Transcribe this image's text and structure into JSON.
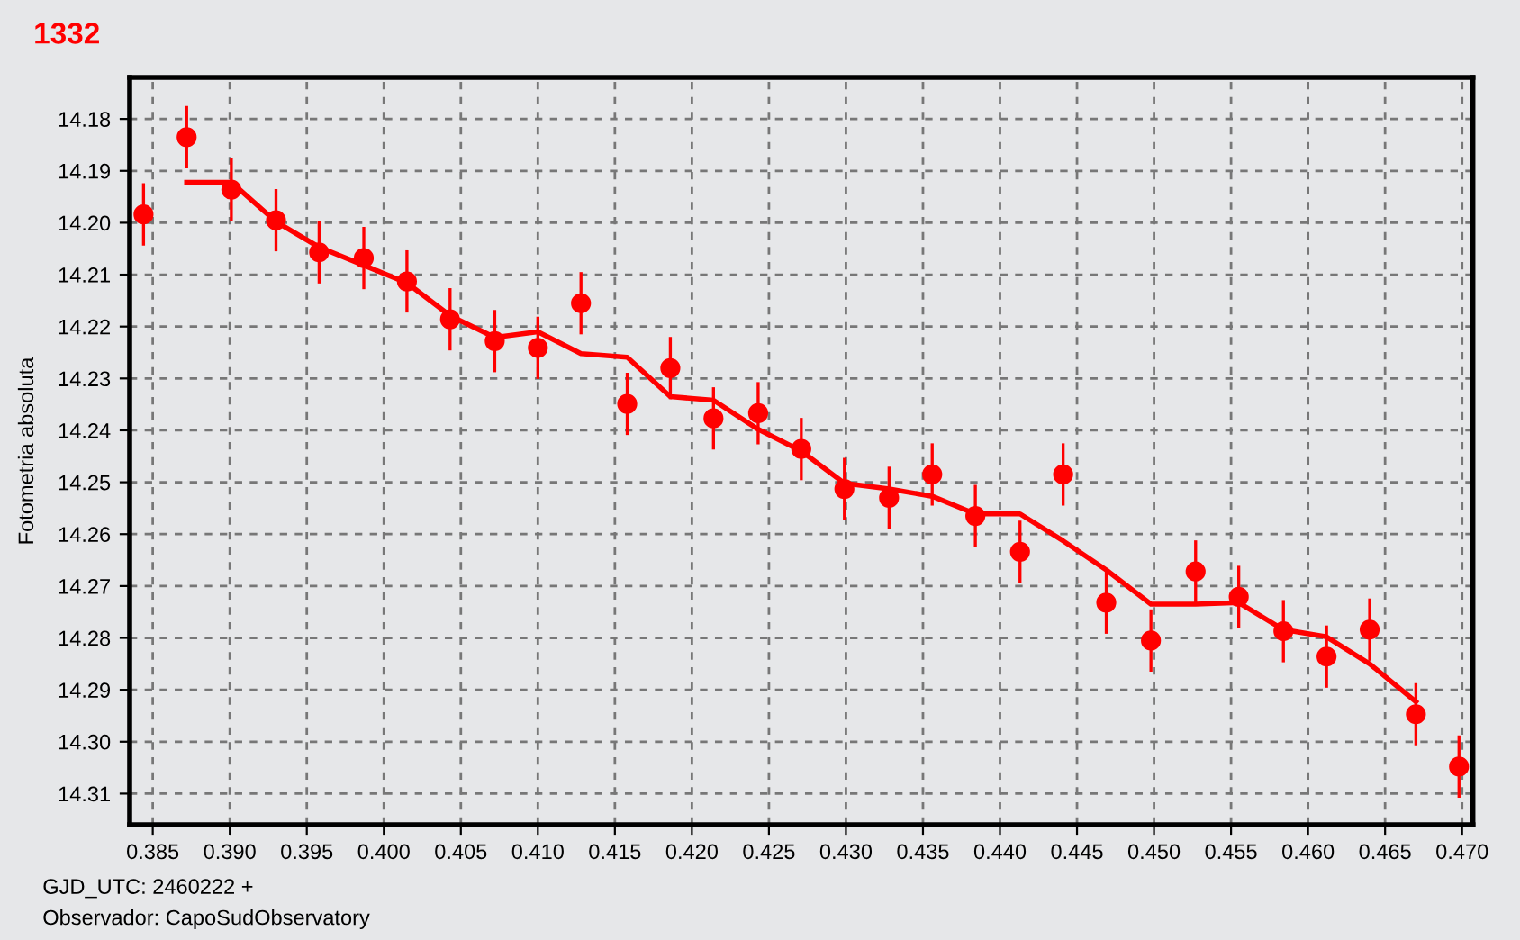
{
  "chart_data": {
    "type": "scatter",
    "title": "1332",
    "ylabel": "Fotometria absoluta",
    "annotations": [
      "GJD_UTC: 2460222 +",
      "Observador: CapoSudObservatory"
    ],
    "xlim": [
      0.3835,
      0.4707
    ],
    "ylim": [
      14.316,
      14.172
    ],
    "xticks": [
      {
        "value": 0.385,
        "label": "0.385"
      },
      {
        "value": 0.39,
        "label": "0.390"
      },
      {
        "value": 0.395,
        "label": "0.395"
      },
      {
        "value": 0.4,
        "label": "0.400"
      },
      {
        "value": 0.405,
        "label": "0.405"
      },
      {
        "value": 0.41,
        "label": "0.410"
      },
      {
        "value": 0.415,
        "label": "0.415"
      },
      {
        "value": 0.42,
        "label": "0.420"
      },
      {
        "value": 0.425,
        "label": "0.425"
      },
      {
        "value": 0.43,
        "label": "0.430"
      },
      {
        "value": 0.435,
        "label": "0.435"
      },
      {
        "value": 0.44,
        "label": "0.440"
      },
      {
        "value": 0.445,
        "label": "0.445"
      },
      {
        "value": 0.45,
        "label": "0.450"
      },
      {
        "value": 0.455,
        "label": "0.455"
      },
      {
        "value": 0.46,
        "label": "0.460"
      },
      {
        "value": 0.465,
        "label": "0.465"
      },
      {
        "value": 0.47,
        "label": "0.470"
      }
    ],
    "yticks": [
      {
        "value": 14.18,
        "label": "14.18"
      },
      {
        "value": 14.19,
        "label": "14.19"
      },
      {
        "value": 14.2,
        "label": "14.20"
      },
      {
        "value": 14.21,
        "label": "14.21"
      },
      {
        "value": 14.22,
        "label": "14.22"
      },
      {
        "value": 14.23,
        "label": "14.23"
      },
      {
        "value": 14.24,
        "label": "14.24"
      },
      {
        "value": 14.25,
        "label": "14.25"
      },
      {
        "value": 14.26,
        "label": "14.26"
      },
      {
        "value": 14.27,
        "label": "14.27"
      },
      {
        "value": 14.28,
        "label": "14.28"
      },
      {
        "value": 14.29,
        "label": "14.29"
      },
      {
        "value": 14.3,
        "label": "14.30"
      },
      {
        "value": 14.31,
        "label": "14.31"
      }
    ],
    "grid": true,
    "series": [
      {
        "marker": "circle",
        "color": "#ff0000",
        "x": [
          0.3844,
          0.3872,
          0.3901,
          0.393,
          0.3958,
          0.3987,
          0.4015,
          0.4043,
          0.4072,
          0.41,
          0.4128,
          0.4158,
          0.4186,
          0.4214,
          0.4243,
          0.4271,
          0.4299,
          0.4328,
          0.4356,
          0.4384,
          0.4413,
          0.4441,
          0.4469,
          0.4498,
          0.4527,
          0.4555,
          0.4584,
          0.4612,
          0.464,
          0.467,
          0.4698
        ],
        "values": [
          14.1984,
          14.1835,
          14.1936,
          14.1995,
          14.2057,
          14.2068,
          14.2113,
          14.2186,
          14.2228,
          14.2241,
          14.2155,
          14.2349,
          14.228,
          14.2377,
          14.2367,
          14.2436,
          14.2513,
          14.253,
          14.2485,
          14.2565,
          14.2634,
          14.2485,
          14.2732,
          14.2805,
          14.2672,
          14.2721,
          14.2787,
          14.2836,
          14.2784,
          14.2947,
          14.3048
        ],
        "errors": [
          0.006,
          0.006,
          0.006,
          0.006,
          0.006,
          0.006,
          0.006,
          0.006,
          0.006,
          0.006,
          0.006,
          0.006,
          0.006,
          0.006,
          0.006,
          0.006,
          0.006,
          0.006,
          0.006,
          0.006,
          0.006,
          0.006,
          0.006,
          0.006,
          0.006,
          0.006,
          0.006,
          0.006,
          0.006,
          0.006,
          0.006
        ]
      },
      {
        "type": "line",
        "color": "#ff0000",
        "x": [
          0.3872,
          0.3901,
          0.393,
          0.3958,
          0.3987,
          0.4015,
          0.4043,
          0.4072,
          0.41,
          0.4128,
          0.4158,
          0.4186,
          0.4214,
          0.4243,
          0.4271,
          0.4299,
          0.4328,
          0.4356,
          0.4384,
          0.4413,
          0.4441,
          0.4469,
          0.4498,
          0.4527,
          0.4555,
          0.4584,
          0.4612,
          0.464,
          0.467
        ],
        "values": [
          14.1922,
          14.1922,
          14.1998,
          14.2047,
          14.2082,
          14.2116,
          14.2179,
          14.2221,
          14.221,
          14.2252,
          14.2259,
          14.2335,
          14.2342,
          14.2398,
          14.244,
          14.2502,
          14.2513,
          14.2527,
          14.2561,
          14.2561,
          14.2613,
          14.2669,
          14.2735,
          14.2735,
          14.2732,
          14.2784,
          14.2798,
          14.285,
          14.2923
        ]
      }
    ]
  }
}
